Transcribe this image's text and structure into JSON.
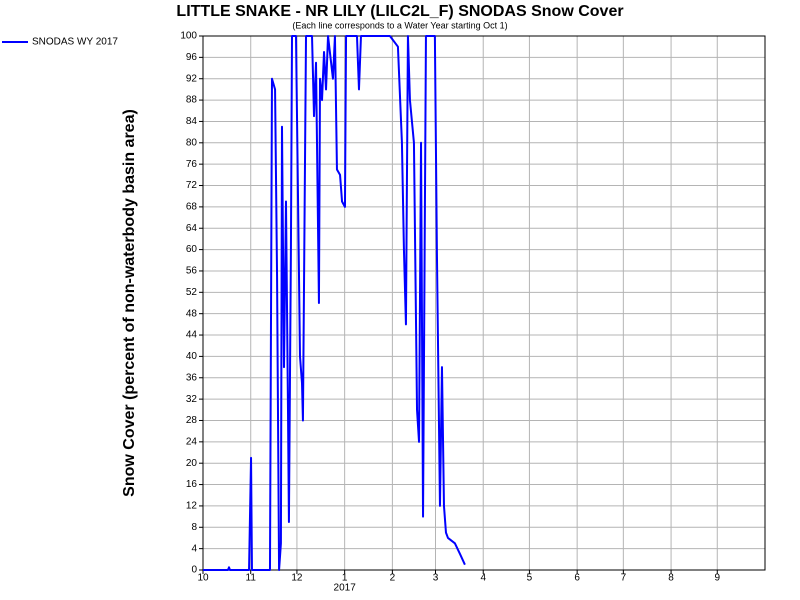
{
  "chart_data": {
    "type": "line",
    "title": "LITTLE SNAKE - NR LILY (LILC2L_F) SNODAS Snow Cover",
    "subtitle": "(Each line corresponds to a Water Year starting Oct 1)",
    "y_label": "Snow Cover (percent of non-waterbody basin area)",
    "x_year_label": "2017",
    "xlim": [
      0,
      365
    ],
    "xticks": [
      {
        "value": 0,
        "label": "10"
      },
      {
        "value": 31,
        "label": "11"
      },
      {
        "value": 61,
        "label": "12"
      },
      {
        "value": 92,
        "label": "1"
      },
      {
        "value": 123,
        "label": "2"
      },
      {
        "value": 151,
        "label": "3"
      },
      {
        "value": 182,
        "label": "4"
      },
      {
        "value": 212,
        "label": "5"
      },
      {
        "value": 243,
        "label": "6"
      },
      {
        "value": 273,
        "label": "7"
      },
      {
        "value": 304,
        "label": "8"
      },
      {
        "value": 334,
        "label": "9"
      }
    ],
    "ylim": [
      0,
      100
    ],
    "yticks": [
      0,
      4,
      8,
      12,
      16,
      20,
      24,
      28,
      32,
      36,
      40,
      44,
      48,
      52,
      56,
      60,
      64,
      68,
      72,
      76,
      80,
      84,
      88,
      92,
      96,
      100
    ],
    "grid": true,
    "legend": "top-left",
    "x": [
      0,
      16.2,
      16.9,
      17.5,
      29.9,
      31.2,
      31.8,
      43.5,
      44.8,
      46.8,
      48.1,
      49.4,
      50.6,
      51.3,
      52.6,
      53.9,
      55.2,
      55.8,
      57.1,
      57.8,
      60.4,
      61.7,
      63.0,
      64.3,
      64.9,
      66.9,
      70.8,
      72.1,
      73.4,
      75.3,
      76.0,
      77.3,
      78.6,
      79.9,
      81.2,
      84.4,
      85.7,
      87.0,
      89.0,
      90.3,
      92.2,
      92.9,
      100,
      101.3,
      102.6,
      121.4,
      126.6,
      129.2,
      130.5,
      131.8,
      133.1,
      134.4,
      137.0,
      139.0,
      140.3,
      141.6,
      142.9,
      144.8,
      150.6,
      151.9,
      153.9,
      155.2,
      156.5,
      157.8,
      159.1,
      163.6,
      166.9,
      170.1
    ],
    "series": [
      {
        "name": "SNODAS WY 2017",
        "color": "#0000ff",
        "values": [
          0,
          0,
          0.5,
          0,
          0,
          21,
          0,
          0,
          92,
          90,
          55,
          0,
          5,
          83,
          38,
          69,
          30,
          9,
          60,
          100,
          100,
          70,
          40,
          35,
          28,
          100,
          100,
          85,
          95,
          50,
          92,
          88,
          97,
          90,
          100,
          92,
          100,
          75,
          74,
          69,
          68,
          100,
          100,
          90,
          100,
          100,
          98,
          80,
          60,
          46,
          100,
          88,
          80,
          30,
          24,
          80,
          10,
          100,
          100,
          60,
          12,
          38,
          12,
          7,
          6,
          5,
          3,
          1
        ]
      }
    ]
  }
}
